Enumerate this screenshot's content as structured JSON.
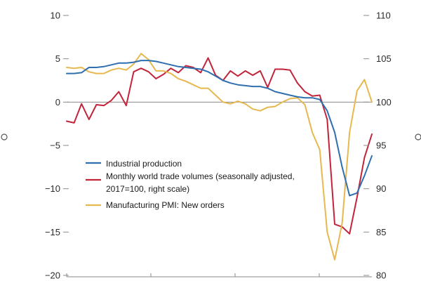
{
  "chart_data": {
    "type": "line",
    "title": "",
    "xlabel": "",
    "ylabel": "",
    "left_axis": {
      "ylim": [
        -20,
        10
      ],
      "ticks": [
        10,
        5,
        0,
        -5,
        -10,
        -15,
        -20
      ],
      "tick_labels": [
        "10",
        "5",
        "0",
        "−5",
        "−10",
        "−15",
        "−20"
      ]
    },
    "right_axis": {
      "ylim": [
        80,
        110
      ],
      "ticks": [
        110,
        105,
        100,
        95,
        90,
        85,
        80
      ],
      "tick_labels": [
        "110",
        "105",
        "100",
        "95",
        "90",
        "85",
        "80"
      ]
    },
    "x_count": 42,
    "zero_line": 0,
    "legend_position": "lower-left",
    "series": [
      {
        "name": "Industrial production",
        "color": "#2f6fb0",
        "axis": "left",
        "start_index": 0,
        "values": [
          3.3,
          3.3,
          3.4,
          4.0,
          4.0,
          4.1,
          4.3,
          4.5,
          4.5,
          4.6,
          4.8,
          4.8,
          4.7,
          4.5,
          4.3,
          4.1,
          4.0,
          3.9,
          3.8,
          3.5,
          3.0,
          2.5,
          2.2,
          2.0,
          1.9,
          1.8,
          1.8,
          1.6,
          1.2,
          1.0,
          0.8,
          0.6,
          0.5,
          0.5,
          0.3,
          -1.0,
          -3.5,
          -7.5,
          -10.8,
          -10.5,
          -8.5,
          -6.2
        ]
      },
      {
        "name": "Monthly world trade volumes (seasonally adjusted, 2017=100, right scale)",
        "color": "#c2243a",
        "axis": "right",
        "start_index": 0,
        "values": [
          97.8,
          97.6,
          99.8,
          98.0,
          99.7,
          99.6,
          100.2,
          101.2,
          99.6,
          103.5,
          103.9,
          103.5,
          102.7,
          103.2,
          103.9,
          103.4,
          104.2,
          104.0,
          103.4,
          105.1,
          103.1,
          102.5,
          103.6,
          103.0,
          103.6,
          103.1,
          103.6,
          101.7,
          103.8,
          103.8,
          103.7,
          102.2,
          101.2,
          100.7,
          100.8,
          98.0,
          85.9,
          85.6,
          84.8,
          89.0,
          93.6,
          96.3
        ]
      },
      {
        "name": "Manufacturing PMI: New orders",
        "color": "#e6b84f",
        "axis": "left",
        "start_index": 0,
        "values": [
          4.0,
          3.9,
          4.0,
          3.5,
          3.3,
          3.3,
          3.7,
          3.9,
          3.7,
          4.4,
          5.6,
          4.9,
          3.6,
          3.6,
          3.3,
          2.7,
          2.4,
          2.0,
          1.6,
          1.6,
          0.8,
          0.0,
          -0.2,
          0.1,
          -0.2,
          -0.8,
          -1.0,
          -0.6,
          -0.5,
          0.0,
          0.4,
          0.5,
          -0.3,
          -3.5,
          -5.5,
          -15.0,
          -18.2,
          -14.0,
          -3.5,
          1.3,
          2.6,
          0.0
        ]
      }
    ]
  },
  "legend": {
    "items": [
      {
        "line1": "Industrial production",
        "line2": ""
      },
      {
        "line1": "Monthly world trade volumes (seasonally adjusted,",
        "line2": "2017=100, right scale)"
      },
      {
        "line1": "Manufacturing PMI: New orders",
        "line2": ""
      }
    ]
  }
}
